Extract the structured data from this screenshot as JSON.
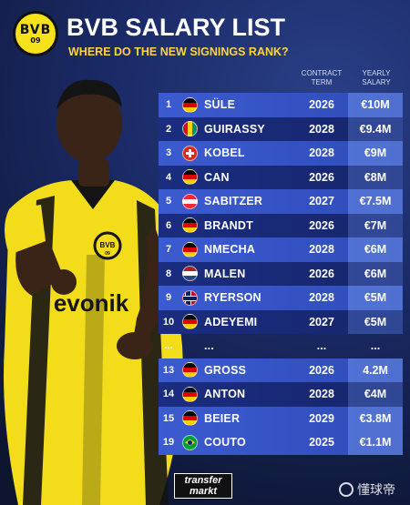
{
  "header": {
    "logo_text": "BVB",
    "logo_year": "09",
    "title": "BVB SALARY LIST",
    "subtitle": "WHERE DO THE NEW SIGNINGS RANK?"
  },
  "columns": {
    "term": "CONTRACT TERM",
    "salary": "YEARLY SALARY"
  },
  "rows": [
    {
      "rank": "1",
      "flag": "de",
      "name": "SÜLE",
      "year": "2026",
      "salary": "€10M",
      "shade": "a"
    },
    {
      "rank": "2",
      "flag": "gn",
      "name": "GUIRASSY",
      "year": "2028",
      "salary": "€9.4M",
      "shade": "b"
    },
    {
      "rank": "3",
      "flag": "ch",
      "name": "KOBEL",
      "year": "2028",
      "salary": "€9M",
      "shade": "a"
    },
    {
      "rank": "4",
      "flag": "de",
      "name": "CAN",
      "year": "2026",
      "salary": "€8M",
      "shade": "b"
    },
    {
      "rank": "5",
      "flag": "at",
      "name": "SABITZER",
      "year": "2027",
      "salary": "€7.5M",
      "shade": "a"
    },
    {
      "rank": "6",
      "flag": "de",
      "name": "BRANDT",
      "year": "2026",
      "salary": "€7M",
      "shade": "b"
    },
    {
      "rank": "7",
      "flag": "de",
      "name": "NMECHA",
      "year": "2028",
      "salary": "€6M",
      "shade": "a"
    },
    {
      "rank": "8",
      "flag": "nl",
      "name": "MALEN",
      "year": "2026",
      "salary": "€6M",
      "shade": "b"
    },
    {
      "rank": "9",
      "flag": "no",
      "name": "RYERSON",
      "year": "2028",
      "salary": "€5M",
      "shade": "a"
    },
    {
      "rank": "10",
      "flag": "de",
      "name": "ADEYEMI",
      "year": "2027",
      "salary": "€5M",
      "shade": "b"
    },
    {
      "rank": "...",
      "flag": "",
      "name": "...",
      "year": "...",
      "salary": "...",
      "shade": "dots"
    },
    {
      "rank": "13",
      "flag": "de",
      "name": "GROSS",
      "year": "2026",
      "salary": "4.2M",
      "shade": "a"
    },
    {
      "rank": "14",
      "flag": "de",
      "name": "ANTON",
      "year": "2028",
      "salary": "€4M",
      "shade": "b"
    },
    {
      "rank": "15",
      "flag": "de",
      "name": "BEIER",
      "year": "2029",
      "salary": "€3.8M",
      "shade": "a"
    },
    {
      "rank": "19",
      "flag": "br",
      "name": "COUTO",
      "year": "2025",
      "salary": "€1.1M",
      "shade": "a"
    }
  ],
  "player": {
    "sponsor": "evonik",
    "crest_text": "BVB",
    "crest_year": "09"
  },
  "footer": {
    "logo_line1": "transfer",
    "logo_line2": "markt",
    "watermark": "懂球帝"
  },
  "colors": {
    "accent": "#ffd43b",
    "bvb_yellow": "#f5e21a",
    "row_light": "#3b5bd0",
    "row_dark": "#1a2d80"
  }
}
